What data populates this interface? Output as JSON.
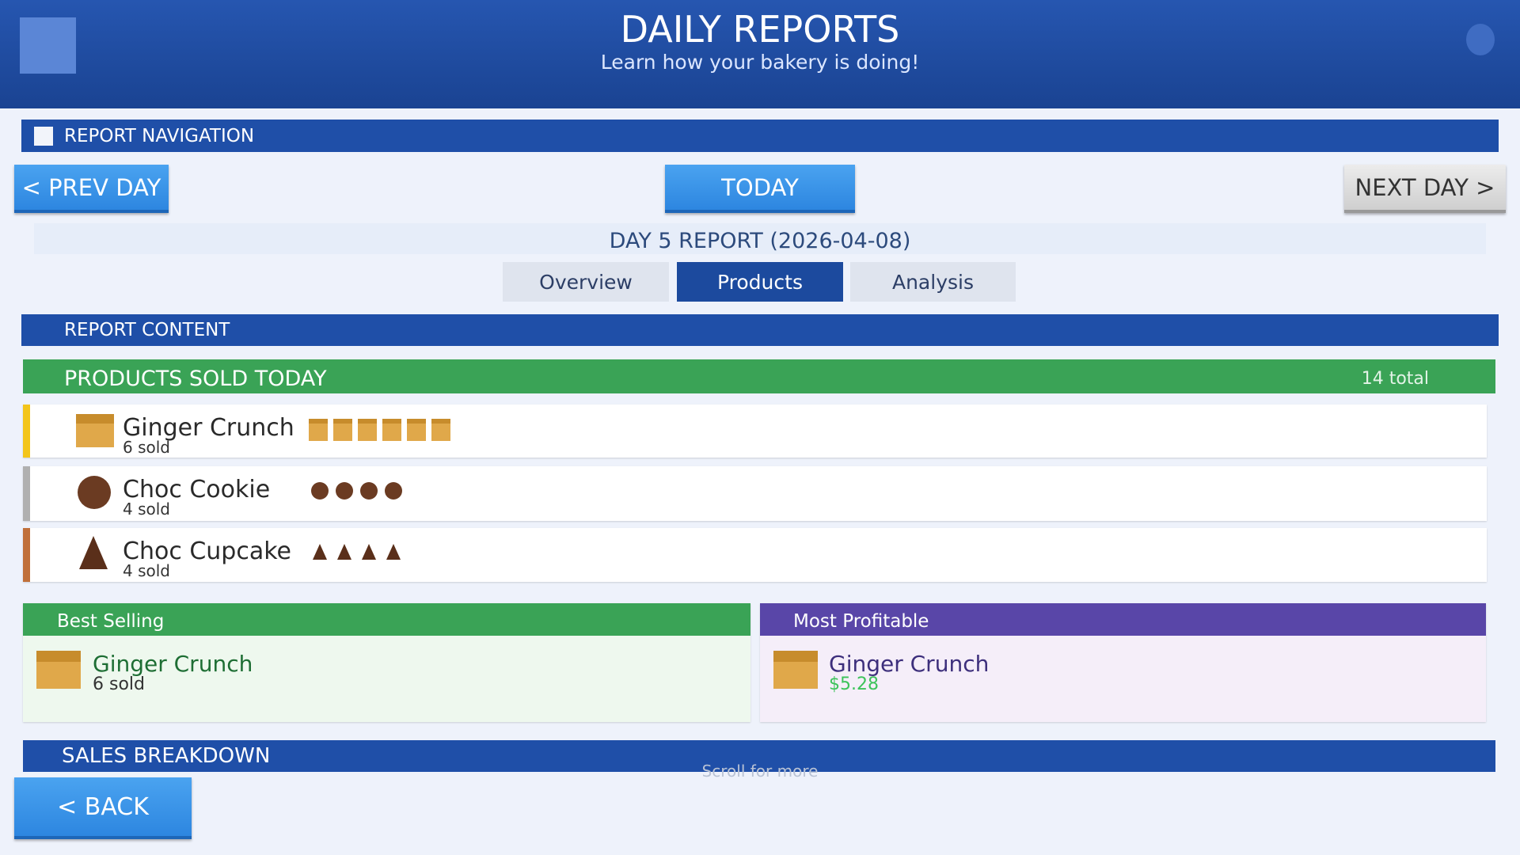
{
  "header": {
    "title": "DAILY REPORTS",
    "subtitle": "Learn how your bakery is doing!"
  },
  "navigation": {
    "title": "REPORT NAVIGATION",
    "prev": "< PREV DAY",
    "today": "TODAY",
    "next": "NEXT DAY >"
  },
  "report": {
    "title": "DAY 5 REPORT (2026-04-08)",
    "tabs": [
      "Overview",
      "Products",
      "Analysis"
    ]
  },
  "content": {
    "title": "REPORT CONTENT",
    "products_sold": {
      "title": "PRODUCTS SOLD TODAY",
      "total": "14 total",
      "items": [
        {
          "name": "Ginger Crunch",
          "sold": "6 sold"
        },
        {
          "name": "Choc Cookie",
          "sold": "4 sold"
        },
        {
          "name": "Choc Cupcake",
          "sold": "4 sold"
        }
      ]
    },
    "best_selling": {
      "title": "Best Selling",
      "name": "Ginger Crunch",
      "detail": "6 sold"
    },
    "most_profitable": {
      "title": "Most Profitable",
      "name": "Ginger Crunch",
      "detail": "$5.28"
    },
    "sales_breakdown": {
      "title": "SALES BREAKDOWN"
    },
    "scroll_hint": "Scroll for more"
  },
  "back": "< BACK"
}
